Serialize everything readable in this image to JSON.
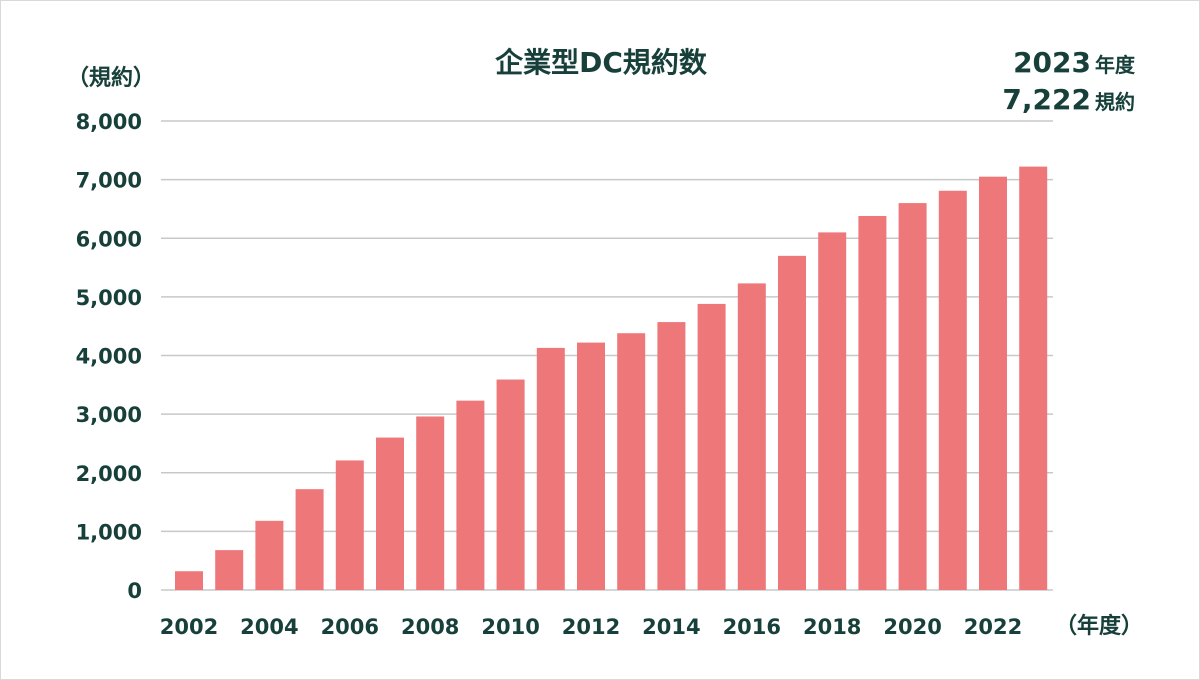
{
  "chart_data": {
    "type": "bar",
    "title": "企業型DC規約数",
    "ylabel": "（規約）",
    "xlabel": "（年度）",
    "ylim": [
      0,
      8000
    ],
    "yticks": [
      0,
      1000,
      2000,
      3000,
      4000,
      5000,
      6000,
      7000,
      8000
    ],
    "ytick_labels": [
      "0",
      "1,000",
      "2,000",
      "3,000",
      "4,000",
      "5,000",
      "6,000",
      "7,000",
      "8,000"
    ],
    "categories": [
      "2002",
      "2003",
      "2004",
      "2005",
      "2006",
      "2007",
      "2008",
      "2009",
      "2010",
      "2011",
      "2012",
      "2013",
      "2014",
      "2015",
      "2016",
      "2017",
      "2018",
      "2019",
      "2020",
      "2021",
      "2022",
      "2023"
    ],
    "visible_xtick_labels": [
      "2002",
      "2004",
      "2006",
      "2008",
      "2010",
      "2012",
      "2014",
      "2016",
      "2018",
      "2020",
      "2022"
    ],
    "values": [
      320,
      680,
      1180,
      1720,
      2210,
      2600,
      2960,
      3230,
      3590,
      4130,
      4220,
      4380,
      4570,
      4880,
      5230,
      5700,
      6100,
      6380,
      6600,
      6810,
      7050,
      7222
    ],
    "grid": true,
    "bar_color": "#ee7779",
    "text_color": "#17403b",
    "annotation": {
      "year_number": "2023",
      "year_unit": "年度",
      "count_number": "7,222",
      "count_unit": "規約"
    }
  }
}
